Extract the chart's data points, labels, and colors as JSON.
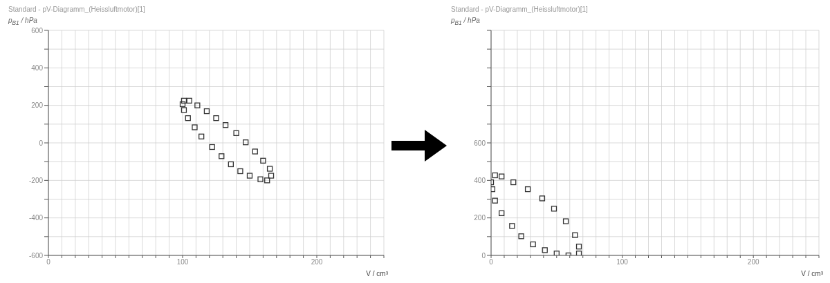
{
  "chart_data": [
    {
      "type": "scatter",
      "title": "Standard - pV-Diagramm_(Heissluftmotor)[1]",
      "xlabel": "V / cm³",
      "ylabel": "p$_{B1}$ / hPa",
      "xlim": [
        0,
        250
      ],
      "xticks": [
        0,
        {
          "value": 10,
          "label": null
        },
        {
          "value": 20,
          "label": null
        },
        {
          "value": 30,
          "label": null
        },
        {
          "value": 40,
          "label": null
        },
        {
          "value": 50,
          "label": null
        },
        {
          "value": 60,
          "label": null
        },
        {
          "value": 70,
          "label": null
        },
        {
          "value": 80,
          "label": null
        },
        {
          "value": 90,
          "label": null
        },
        100,
        {
          "value": 110,
          "label": null
        },
        {
          "value": 120,
          "label": null
        },
        {
          "value": 130,
          "label": null
        },
        {
          "value": 140,
          "label": null
        },
        {
          "value": 150,
          "label": null
        },
        {
          "value": 160,
          "label": null
        },
        {
          "value": 170,
          "label": null
        },
        {
          "value": 180,
          "label": null
        },
        {
          "value": 190,
          "label": null
        },
        200,
        {
          "value": 210,
          "label": null
        },
        {
          "value": 220,
          "label": null
        },
        {
          "value": 230,
          "label": null
        },
        {
          "value": 240,
          "label": null
        },
        {
          "value": 250,
          "label": null
        }
      ],
      "ylim": [
        -600,
        600
      ],
      "yticks": [
        -600,
        {
          "value": -500,
          "label": null
        },
        -400,
        {
          "value": -300,
          "label": null
        },
        -200,
        {
          "value": -100,
          "label": null
        },
        0,
        {
          "value": 100,
          "label": null
        },
        200,
        {
          "value": 300,
          "label": null
        },
        400,
        {
          "value": 500,
          "label": null
        },
        600
      ],
      "grid": true,
      "marker": "square",
      "series": [
        {
          "color": "#333333",
          "x": [
            101,
            105,
            111,
            118,
            125,
            132,
            140,
            147,
            154,
            160,
            165,
            166,
            163,
            158,
            150,
            143,
            136,
            129,
            122,
            114,
            109,
            104,
            101,
            100
          ],
          "values": [
            225,
            225,
            200,
            169,
            132,
            95,
            52,
            3,
            -46,
            -95,
            -138,
            -175,
            -200,
            -194,
            -175,
            -151,
            -114,
            -71,
            -22,
            34,
            83,
            132,
            175,
            206
          ]
        }
      ]
    },
    {
      "type": "scatter",
      "title": "Standard - pV-Diagramm_(Heissluftmotor)[1]",
      "xlabel": "V / cm³",
      "ylabel": "p$_{B1}$ / hPa",
      "xlim": [
        0,
        250
      ],
      "xticks": [
        0,
        {
          "value": 10,
          "label": null
        },
        {
          "value": 20,
          "label": null
        },
        {
          "value": 30,
          "label": null
        },
        {
          "value": 40,
          "label": null
        },
        {
          "value": 50,
          "label": null
        },
        {
          "value": 60,
          "label": null
        },
        {
          "value": 70,
          "label": null
        },
        {
          "value": 80,
          "label": null
        },
        {
          "value": 90,
          "label": null
        },
        100,
        {
          "value": 110,
          "label": null
        },
        {
          "value": 120,
          "label": null
        },
        {
          "value": 130,
          "label": null
        },
        {
          "value": 140,
          "label": null
        },
        {
          "value": 150,
          "label": null
        },
        {
          "value": 160,
          "label": null
        },
        {
          "value": 170,
          "label": null
        },
        {
          "value": 180,
          "label": null
        },
        {
          "value": 190,
          "label": null
        },
        200,
        {
          "value": 210,
          "label": null
        },
        {
          "value": 220,
          "label": null
        },
        {
          "value": 230,
          "label": null
        },
        {
          "value": 240,
          "label": null
        },
        {
          "value": 250,
          "label": null
        }
      ],
      "ylim": [
        0,
        1200
      ],
      "yticks": [
        0,
        {
          "value": 100,
          "label": null
        },
        200,
        {
          "value": 300,
          "label": null
        },
        400,
        {
          "value": 500,
          "label": null
        },
        600,
        {
          "value": 700,
          "label": null
        },
        {
          "value": 800,
          "label": null
        },
        {
          "value": 900,
          "label": null
        },
        {
          "value": 1000,
          "label": null
        },
        {
          "value": 1100,
          "label": null
        },
        {
          "value": 1200,
          "label": null
        }
      ],
      "grid": true,
      "marker": "square",
      "series": [
        {
          "color": "#333333",
          "x": [
            3,
            8,
            17,
            28,
            39,
            48,
            57,
            64,
            67,
            67,
            59,
            50,
            41,
            32,
            23,
            16,
            8,
            3,
            1,
            0
          ],
          "values": [
            427,
            421,
            390,
            353,
            304,
            249,
            182,
            108,
            47,
            10,
            0,
            10,
            28,
            59,
            102,
            157,
            225,
            292,
            353,
            390
          ]
        }
      ]
    }
  ]
}
